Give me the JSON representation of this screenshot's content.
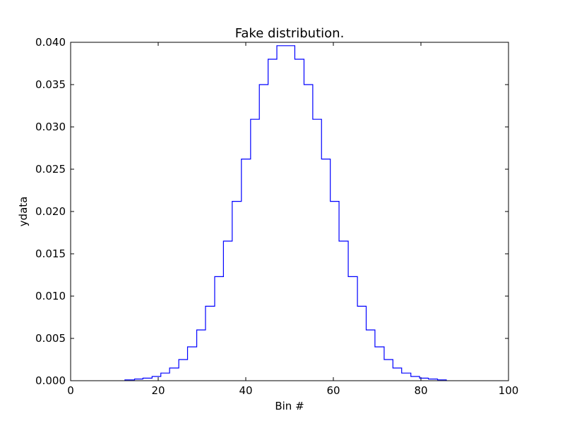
{
  "chart_data": {
    "type": "line",
    "style": "steps",
    "title": "Fake distribution.",
    "xlabel": "Bin #",
    "ylabel": "ydata",
    "xlim": [
      0,
      100
    ],
    "ylim": [
      0,
      0.04
    ],
    "grid": false,
    "x_ticks": [
      "0",
      "20",
      "40",
      "60",
      "80",
      "100"
    ],
    "y_ticks": [
      "0.000",
      "0.005",
      "0.010",
      "0.015",
      "0.020",
      "0.025",
      "0.030",
      "0.035",
      "0.040"
    ],
    "series": [
      {
        "color": "#0000ff",
        "bin_edges": [
          12.4,
          14.6,
          16.5,
          18.6,
          20.6,
          22.6,
          24.7,
          26.7,
          28.8,
          30.8,
          32.9,
          34.9,
          36.9,
          39.0,
          41.1,
          43.1,
          45.1,
          47.1,
          51.2,
          53.3,
          55.3,
          57.3,
          59.3,
          61.3,
          63.4,
          65.5,
          67.5,
          69.5,
          71.6,
          73.6,
          75.6,
          77.7,
          79.7,
          81.7,
          83.8,
          85.8
        ],
        "values": [
          0.0001,
          0.0002,
          0.0003,
          0.0005,
          0.0009,
          0.0015,
          0.0025,
          0.004,
          0.006,
          0.0088,
          0.0123,
          0.0165,
          0.0212,
          0.0262,
          0.0309,
          0.035,
          0.038,
          0.0396,
          0.038,
          0.035,
          0.0309,
          0.0262,
          0.0212,
          0.0165,
          0.0123,
          0.0088,
          0.006,
          0.004,
          0.0025,
          0.0015,
          0.0009,
          0.0005,
          0.0003,
          0.0002,
          0.0001
        ]
      }
    ]
  }
}
